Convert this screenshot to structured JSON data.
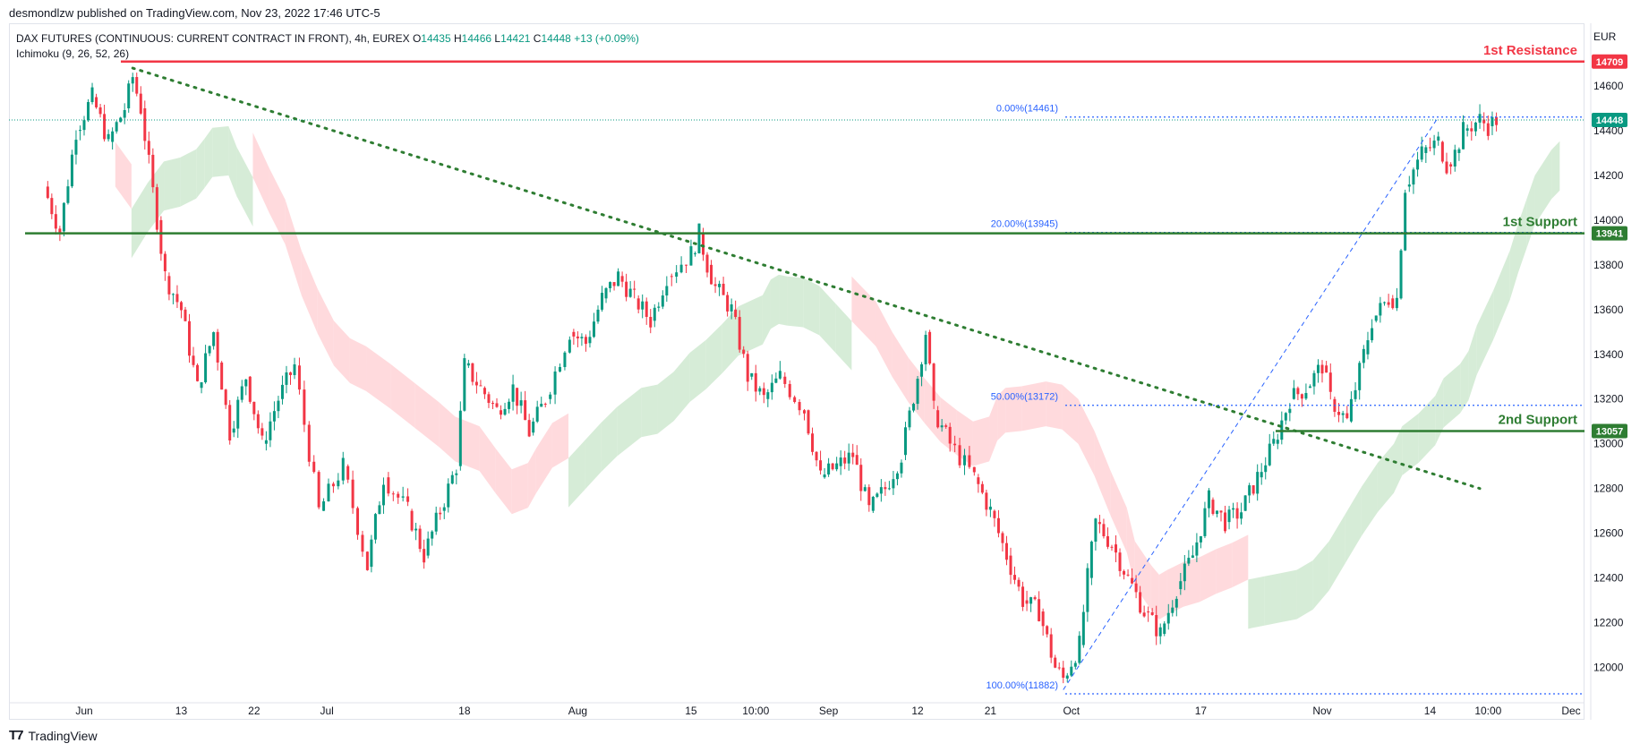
{
  "header": {
    "published": "desmondlzw published on TradingView.com, Nov 23, 2022 17:46 UTC-5"
  },
  "legend": {
    "symbol": "DAX FUTURES (CONTINUOUS: CURRENT CONTRACT IN FRONT), 4h, EUREX",
    "o_label": "O",
    "o": "14435",
    "h_label": "H",
    "h": "14466",
    "l_label": "L",
    "l": "14421",
    "c_label": "C",
    "c": "14448",
    "change": "+13 (+0.09%)",
    "indicator": "Ichimoku (9, 26, 52, 26)"
  },
  "footer": {
    "brand": "TradingView"
  },
  "colors": {
    "up": "#089981",
    "down": "#f23645",
    "resistance": "#f23645",
    "support": "#2e7d32",
    "fib": "#2962ff",
    "trendline": "#2e7d32",
    "cloud_bull": "#c8e6c9",
    "cloud_bear": "#ffcdd2"
  },
  "chart_data": {
    "type": "candlestick",
    "timeframe": "4h",
    "currency": "EUR",
    "ylim": [
      11880,
      14780
    ],
    "y_ticks": [
      12000,
      12200,
      12400,
      12600,
      12800,
      13000,
      13200,
      13400,
      13600,
      13800,
      14000,
      14200,
      14400,
      14600
    ],
    "x_ticks": [
      "Jun",
      "13",
      "22",
      "Jul",
      "18",
      "Aug",
      "15",
      "10:00",
      "Sep",
      "12",
      "21",
      "Oct",
      "17",
      "Nov",
      "14",
      "10:00",
      "Dec"
    ],
    "last_price": 14448,
    "close_path": [
      {
        "t": "May 27",
        "v": 14150
      },
      {
        "t": "May 29",
        "v": 13950
      },
      {
        "t": "May 31",
        "v": 14400
      },
      {
        "t": "Jun 2",
        "v": 14550
      },
      {
        "t": "Jun 4",
        "v": 14350
      },
      {
        "t": "Jun 6",
        "v": 14500
      },
      {
        "t": "Jun 7",
        "v": 14640
      },
      {
        "t": "Jun 8",
        "v": 14500
      },
      {
        "t": "Jun 10",
        "v": 14000
      },
      {
        "t": "Jun 11",
        "v": 13750
      },
      {
        "t": "Jun 13",
        "v": 13600
      },
      {
        "t": "Jun 15",
        "v": 13250
      },
      {
        "t": "Jun 17",
        "v": 13500
      },
      {
        "t": "Jun 19",
        "v": 13050
      },
      {
        "t": "Jun 21",
        "v": 13300
      },
      {
        "t": "Jun 23",
        "v": 13000
      },
      {
        "t": "Jun 25",
        "v": 13200
      },
      {
        "t": "Jun 27",
        "v": 13350
      },
      {
        "t": "Jun 30",
        "v": 12700
      },
      {
        "t": "Jul 3",
        "v": 12900
      },
      {
        "t": "Jul 6",
        "v": 12450
      },
      {
        "t": "Jul 8",
        "v": 12850
      },
      {
        "t": "Jul 11",
        "v": 12700
      },
      {
        "t": "Jul 13",
        "v": 12500
      },
      {
        "t": "Jul 15",
        "v": 12700
      },
      {
        "t": "Jul 17",
        "v": 12900
      },
      {
        "t": "Jul 18",
        "v": 13350
      },
      {
        "t": "Jul 20",
        "v": 13250
      },
      {
        "t": "Jul 22",
        "v": 13150
      },
      {
        "t": "Jul 24",
        "v": 13250
      },
      {
        "t": "Jul 26",
        "v": 13050
      },
      {
        "t": "Jul 28",
        "v": 13200
      },
      {
        "t": "Jul 31",
        "v": 13500
      },
      {
        "t": "Aug 2",
        "v": 13450
      },
      {
        "t": "Aug 4",
        "v": 13650
      },
      {
        "t": "Aug 6",
        "v": 13750
      },
      {
        "t": "Aug 8",
        "v": 13650
      },
      {
        "t": "Aug 10",
        "v": 13550
      },
      {
        "t": "Aug 12",
        "v": 13750
      },
      {
        "t": "Aug 15",
        "v": 13850
      },
      {
        "t": "Aug 16",
        "v": 13940
      },
      {
        "t": "Aug 17",
        "v": 13800
      },
      {
        "t": "Aug 18",
        "v": 13700
      },
      {
        "t": "Aug 20",
        "v": 13600
      },
      {
        "t": "Aug 22",
        "v": 13300
      },
      {
        "t": "Aug 24",
        "v": 13200
      },
      {
        "t": "Aug 26",
        "v": 13300
      },
      {
        "t": "Aug 29",
        "v": 13150
      },
      {
        "t": "Aug 31",
        "v": 12850
      },
      {
        "t": "Sep 2",
        "v": 12900
      },
      {
        "t": "Sep 4",
        "v": 12950
      },
      {
        "t": "Sep 6",
        "v": 12700
      },
      {
        "t": "Sep 8",
        "v": 12800
      },
      {
        "t": "Sep 10",
        "v": 12950
      },
      {
        "t": "Sep 12",
        "v": 13300
      },
      {
        "t": "Sep 13",
        "v": 13500
      },
      {
        "t": "Sep 14",
        "v": 13150
      },
      {
        "t": "Sep 16",
        "v": 13000
      },
      {
        "t": "Sep 19",
        "v": 12850
      },
      {
        "t": "Sep 21",
        "v": 12700
      },
      {
        "t": "Sep 23",
        "v": 12500
      },
      {
        "t": "Sep 25",
        "v": 12300
      },
      {
        "t": "Sep 27",
        "v": 12250
      },
      {
        "t": "Sep 29",
        "v": 12000
      },
      {
        "t": "Sep 30",
        "v": 11950
      },
      {
        "t": "Oct 2",
        "v": 12100
      },
      {
        "t": "Oct 3",
        "v": 12400
      },
      {
        "t": "Oct 4",
        "v": 12650
      },
      {
        "t": "Oct 6",
        "v": 12550
      },
      {
        "t": "Oct 8",
        "v": 12400
      },
      {
        "t": "Oct 10",
        "v": 12250
      },
      {
        "t": "Oct 12",
        "v": 12150
      },
      {
        "t": "Oct 14",
        "v": 12350
      },
      {
        "t": "Oct 16",
        "v": 12500
      },
      {
        "t": "Oct 18",
        "v": 12750
      },
      {
        "t": "Oct 20",
        "v": 12650
      },
      {
        "t": "Oct 22",
        "v": 12700
      },
      {
        "t": "Oct 24",
        "v": 12850
      },
      {
        "t": "Oct 26",
        "v": 13000
      },
      {
        "t": "Oct 28",
        "v": 13200
      },
      {
        "t": "Oct 30",
        "v": 13250
      },
      {
        "t": "Nov 1",
        "v": 13350
      },
      {
        "t": "Nov 2",
        "v": 13200
      },
      {
        "t": "Nov 4",
        "v": 13100
      },
      {
        "t": "Nov 6",
        "v": 13400
      },
      {
        "t": "Nov 7",
        "v": 13550
      },
      {
        "t": "Nov 9",
        "v": 13650
      },
      {
        "t": "Nov 10",
        "v": 13650
      },
      {
        "t": "Nov 11",
        "v": 14150
      },
      {
        "t": "Nov 13",
        "v": 14300
      },
      {
        "t": "Nov 15",
        "v": 14350
      },
      {
        "t": "Nov 16",
        "v": 14250
      },
      {
        "t": "Nov 17",
        "v": 14300
      },
      {
        "t": "Nov 18",
        "v": 14400
      },
      {
        "t": "Nov 20",
        "v": 14450
      },
      {
        "t": "Nov 21",
        "v": 14420
      },
      {
        "t": "Nov 22",
        "v": 14448
      }
    ],
    "horizontal_levels": [
      {
        "name": "1st Resistance",
        "value": 14709,
        "color": "#f23645"
      },
      {
        "name": "1st Support",
        "value": 13941,
        "color": "#2e7d32"
      },
      {
        "name": "2nd Support",
        "value": 13057,
        "color": "#2e7d32"
      }
    ],
    "fib_levels": [
      {
        "label": "0.00%(14461)",
        "value": 14461
      },
      {
        "label": "20.00%(13945)",
        "value": 13945
      },
      {
        "label": "50.00%(13172)",
        "value": 13172
      },
      {
        "label": "100.00%(11882)",
        "value": 11882
      }
    ],
    "trendline": {
      "start": {
        "t": "Jun 7",
        "v": 14680
      },
      "end": {
        "t": "Nov 20",
        "v": 12800
      }
    },
    "fib_trendline": {
      "start": {
        "t": "Sep 30",
        "v": 11900
      },
      "end": {
        "t": "Nov 15",
        "v": 14461
      }
    }
  }
}
